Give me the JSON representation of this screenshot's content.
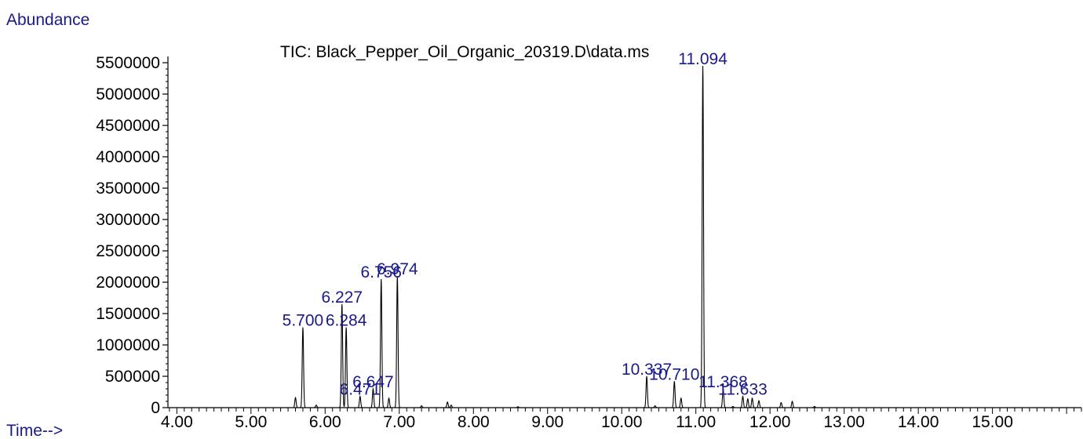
{
  "chart_data": {
    "type": "line",
    "title": "TIC: Black_Pepper_Oil_Organic_20319.D\\data.ms",
    "ylabel": "Abundance",
    "xlabel": "Time-->",
    "xlim": [
      3.88,
      16.2
    ],
    "ylim": [
      0,
      5500000
    ],
    "x_ticks": [
      4.0,
      5.0,
      6.0,
      7.0,
      8.0,
      9.0,
      10.0,
      11.0,
      12.0,
      13.0,
      14.0,
      15.0
    ],
    "x_tick_labels": [
      "4.00",
      "5.00",
      "6.00",
      "7.00",
      "8.00",
      "9.00",
      "10.00",
      "11.00",
      "12.00",
      "13.00",
      "14.00",
      "15.00"
    ],
    "y_ticks": [
      0,
      500000,
      1000000,
      1500000,
      2000000,
      2500000,
      3000000,
      3500000,
      4000000,
      4500000,
      5000000,
      5500000
    ],
    "y_tick_labels": [
      "0",
      "500000",
      "1000000",
      "1500000",
      "2000000",
      "2500000",
      "3000000",
      "3500000",
      "4000000",
      "4500000",
      "5000000",
      "5500000"
    ],
    "peaks": [
      {
        "rt": 5.6,
        "height": 160000
      },
      {
        "rt": 5.7,
        "height": 1280000,
        "label": "5.700"
      },
      {
        "rt": 5.88,
        "height": 40000
      },
      {
        "rt": 6.227,
        "height": 1650000,
        "label": "6.227"
      },
      {
        "rt": 6.284,
        "height": 1280000,
        "label": "6.284"
      },
      {
        "rt": 6.471,
        "height": 180000,
        "label": "6.471"
      },
      {
        "rt": 6.647,
        "height": 300000,
        "label": "6.647"
      },
      {
        "rt": 6.756,
        "height": 2050000,
        "label": "6.756"
      },
      {
        "rt": 6.86,
        "height": 150000
      },
      {
        "rt": 6.974,
        "height": 2100000,
        "label": "6.974"
      },
      {
        "rt": 7.3,
        "height": 30000
      },
      {
        "rt": 7.65,
        "height": 90000
      },
      {
        "rt": 7.7,
        "height": 40000
      },
      {
        "rt": 8.6,
        "height": 15000
      },
      {
        "rt": 10.337,
        "height": 500000,
        "label": "10.337"
      },
      {
        "rt": 10.45,
        "height": 30000
      },
      {
        "rt": 10.71,
        "height": 420000,
        "label": "10.710"
      },
      {
        "rt": 10.8,
        "height": 150000
      },
      {
        "rt": 11.094,
        "height": 5450000,
        "label": "11.094"
      },
      {
        "rt": 11.368,
        "height": 300000,
        "label": "11.368"
      },
      {
        "rt": 11.5,
        "height": 20000
      },
      {
        "rt": 11.633,
        "height": 180000,
        "label": "11.633"
      },
      {
        "rt": 11.7,
        "height": 140000
      },
      {
        "rt": 11.76,
        "height": 150000
      },
      {
        "rt": 11.85,
        "height": 110000
      },
      {
        "rt": 12.15,
        "height": 80000
      },
      {
        "rt": 12.3,
        "height": 100000
      },
      {
        "rt": 12.6,
        "height": 20000
      }
    ]
  }
}
